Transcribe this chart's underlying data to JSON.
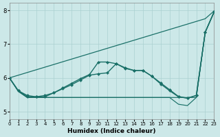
{
  "xlabel": "Humidex (Indice chaleur)",
  "bg_color": "#cce8e8",
  "grid_color": "#aad0d0",
  "line_color": "#1a7068",
  "xlim": [
    0,
    23
  ],
  "ylim": [
    4.78,
    8.22
  ],
  "yticks": [
    5,
    6,
    7,
    8
  ],
  "xticks": [
    0,
    1,
    2,
    3,
    4,
    5,
    6,
    7,
    8,
    9,
    10,
    11,
    12,
    13,
    14,
    15,
    16,
    17,
    18,
    19,
    20,
    21,
    22,
    23
  ],
  "series": [
    {
      "x": [
        0,
        22,
        23
      ],
      "y": [
        6.0,
        7.75,
        7.98
      ],
      "marker": false,
      "lw": 0.9
    },
    {
      "x": [
        0,
        1,
        2,
        3,
        4,
        5,
        6,
        7,
        8,
        9,
        10,
        11,
        12,
        13,
        14,
        15,
        16,
        17,
        18,
        19,
        20,
        21,
        22,
        23
      ],
      "y": [
        6.0,
        5.62,
        5.48,
        5.44,
        5.48,
        5.56,
        5.7,
        5.84,
        5.98,
        6.1,
        6.47,
        6.47,
        6.42,
        6.28,
        6.22,
        6.22,
        6.05,
        5.85,
        5.65,
        5.45,
        5.4,
        5.48,
        7.35,
        7.95
      ],
      "marker": true,
      "lw": 1.0
    },
    {
      "x": [
        0,
        1,
        2,
        3,
        4,
        5,
        6,
        7,
        8,
        9,
        10,
        11,
        12,
        13,
        14,
        15,
        16,
        17,
        18,
        19,
        20,
        21,
        22,
        23
      ],
      "y": [
        6.0,
        5.62,
        5.44,
        5.44,
        5.44,
        5.56,
        5.68,
        5.8,
        5.94,
        6.08,
        6.12,
        6.15,
        6.42,
        6.3,
        6.22,
        6.22,
        6.05,
        5.82,
        5.62,
        5.44,
        5.4,
        5.48,
        7.35,
        7.95
      ],
      "marker": true,
      "lw": 1.0
    },
    {
      "x": [
        0,
        1,
        2,
        3,
        4,
        5,
        6,
        7,
        8,
        9,
        10,
        11,
        12,
        13,
        14,
        15,
        16,
        17,
        18,
        19,
        20,
        21,
        22,
        23
      ],
      "y": [
        6.0,
        5.6,
        5.42,
        5.42,
        5.42,
        5.42,
        5.42,
        5.42,
        5.42,
        5.42,
        5.42,
        5.42,
        5.42,
        5.42,
        5.42,
        5.42,
        5.42,
        5.42,
        5.42,
        5.42,
        5.42,
        5.42,
        7.35,
        7.95
      ],
      "marker": false,
      "lw": 0.85
    },
    {
      "x": [
        0,
        1,
        2,
        3,
        4,
        5,
        6,
        7,
        8,
        9,
        10,
        11,
        12,
        13,
        14,
        15,
        16,
        17,
        18,
        19,
        20,
        21,
        22,
        23
      ],
      "y": [
        6.0,
        5.6,
        5.42,
        5.42,
        5.42,
        5.42,
        5.42,
        5.42,
        5.42,
        5.42,
        5.42,
        5.42,
        5.42,
        5.42,
        5.42,
        5.42,
        5.42,
        5.42,
        5.42,
        5.22,
        5.18,
        5.42,
        7.35,
        7.95
      ],
      "marker": false,
      "lw": 0.85
    }
  ]
}
